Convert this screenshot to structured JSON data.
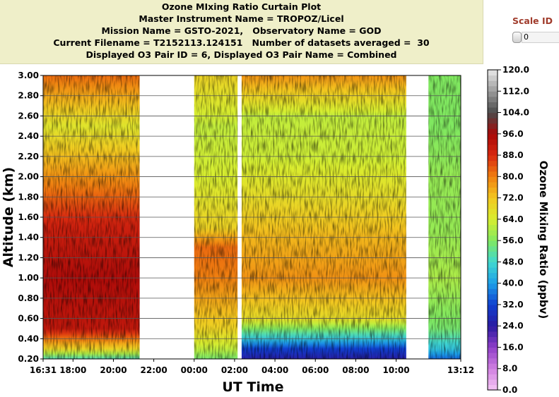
{
  "header": {
    "lines": [
      "Ozone MIxing Ratio Curtain Plot",
      "Master Instrument Name = TROPOZ/Licel",
      "Mission Name = GSTO-2021,   Observatory Name = GOD",
      "Current Filename = T2152113.124151   Number of datasets averaged =  30",
      "Displayed O3 Pair ID = 6, Displayed O3 Pair Name = Combined"
    ]
  },
  "scale_id": {
    "label": "Scale ID",
    "value": "0"
  },
  "chart_data": {
    "type": "heatmap",
    "xlabel": "UT Time",
    "ylabel": "Altitude (km)",
    "colorbar_label": "Ozone Mixing Ratio (ppbv)",
    "x_tick_labels": [
      "16:31",
      "18:00",
      "20:00",
      "22:00",
      "00:00",
      "02:00",
      "04:00",
      "06:00",
      "08:00",
      "10:00",
      "13:12"
    ],
    "x_tick_hours": [
      16.52,
      18,
      20,
      22,
      24,
      26,
      28,
      30,
      32,
      34,
      37.2
    ],
    "xlim_hours": [
      16.52,
      37.2
    ],
    "y_tick_labels": [
      "0.20",
      "0.40",
      "0.60",
      "0.80",
      "1.00",
      "1.20",
      "1.40",
      "1.60",
      "1.80",
      "2.00",
      "2.20",
      "2.40",
      "2.60",
      "2.80",
      "3.00"
    ],
    "ylim_km": [
      0.2,
      3.0
    ],
    "colorbar_ticks": [
      "120.0",
      "112.0",
      "104.0",
      "96.0",
      "88.0",
      "80.0",
      "72.0",
      "64.0",
      "56.0",
      "48.0",
      "40.0",
      "32.0",
      "24.0",
      "16.0",
      "8.0",
      "0.0"
    ],
    "clim_ppbv": [
      0,
      120
    ],
    "colorscale": [
      [
        0,
        "#f4c6f4"
      ],
      [
        8,
        "#d080e0"
      ],
      [
        16,
        "#9040c8"
      ],
      [
        24,
        "#2a1aa0"
      ],
      [
        32,
        "#1040d0"
      ],
      [
        40,
        "#1c9fe8"
      ],
      [
        48,
        "#40d8d0"
      ],
      [
        56,
        "#80e860"
      ],
      [
        64,
        "#d8ee30"
      ],
      [
        72,
        "#f2c820"
      ],
      [
        80,
        "#f08010"
      ],
      [
        88,
        "#d82810"
      ],
      [
        96,
        "#a80808"
      ],
      [
        104,
        "#4a4a4a"
      ],
      [
        112,
        "#9a9a9a"
      ],
      [
        120,
        "#e8e8e8"
      ]
    ],
    "data_segments": [
      {
        "start_hour": 16.52,
        "end_hour": 21.3,
        "profile_ppbv": [
          [
            0.2,
            50
          ],
          [
            0.3,
            70
          ],
          [
            0.5,
            92
          ],
          [
            1.0,
            95
          ],
          [
            1.5,
            90
          ],
          [
            2.0,
            78
          ],
          [
            2.5,
            66
          ],
          [
            3.0,
            82
          ]
        ]
      },
      {
        "start_hour": 24.0,
        "end_hour": 26.15,
        "profile_ppbv": [
          [
            0.2,
            55
          ],
          [
            0.3,
            62
          ],
          [
            0.5,
            70
          ],
          [
            1.0,
            80
          ],
          [
            1.3,
            82
          ],
          [
            1.5,
            70
          ],
          [
            2.0,
            64
          ],
          [
            2.5,
            62
          ],
          [
            3.0,
            70
          ]
        ]
      },
      {
        "start_hour": 26.35,
        "end_hour": 34.5,
        "profile_ppbv": [
          [
            0.2,
            25
          ],
          [
            0.3,
            32
          ],
          [
            0.4,
            45
          ],
          [
            0.6,
            68
          ],
          [
            1.0,
            78
          ],
          [
            1.4,
            74
          ],
          [
            1.8,
            68
          ],
          [
            2.2,
            63
          ],
          [
            2.6,
            62
          ],
          [
            3.0,
            78
          ]
        ]
      },
      {
        "start_hour": 35.6,
        "end_hour": 37.2,
        "profile_ppbv": [
          [
            0.2,
            35
          ],
          [
            0.3,
            45
          ],
          [
            0.5,
            55
          ],
          [
            1.0,
            60
          ],
          [
            1.5,
            58
          ],
          [
            2.0,
            58
          ],
          [
            2.5,
            56
          ],
          [
            3.0,
            56
          ]
        ]
      }
    ]
  }
}
